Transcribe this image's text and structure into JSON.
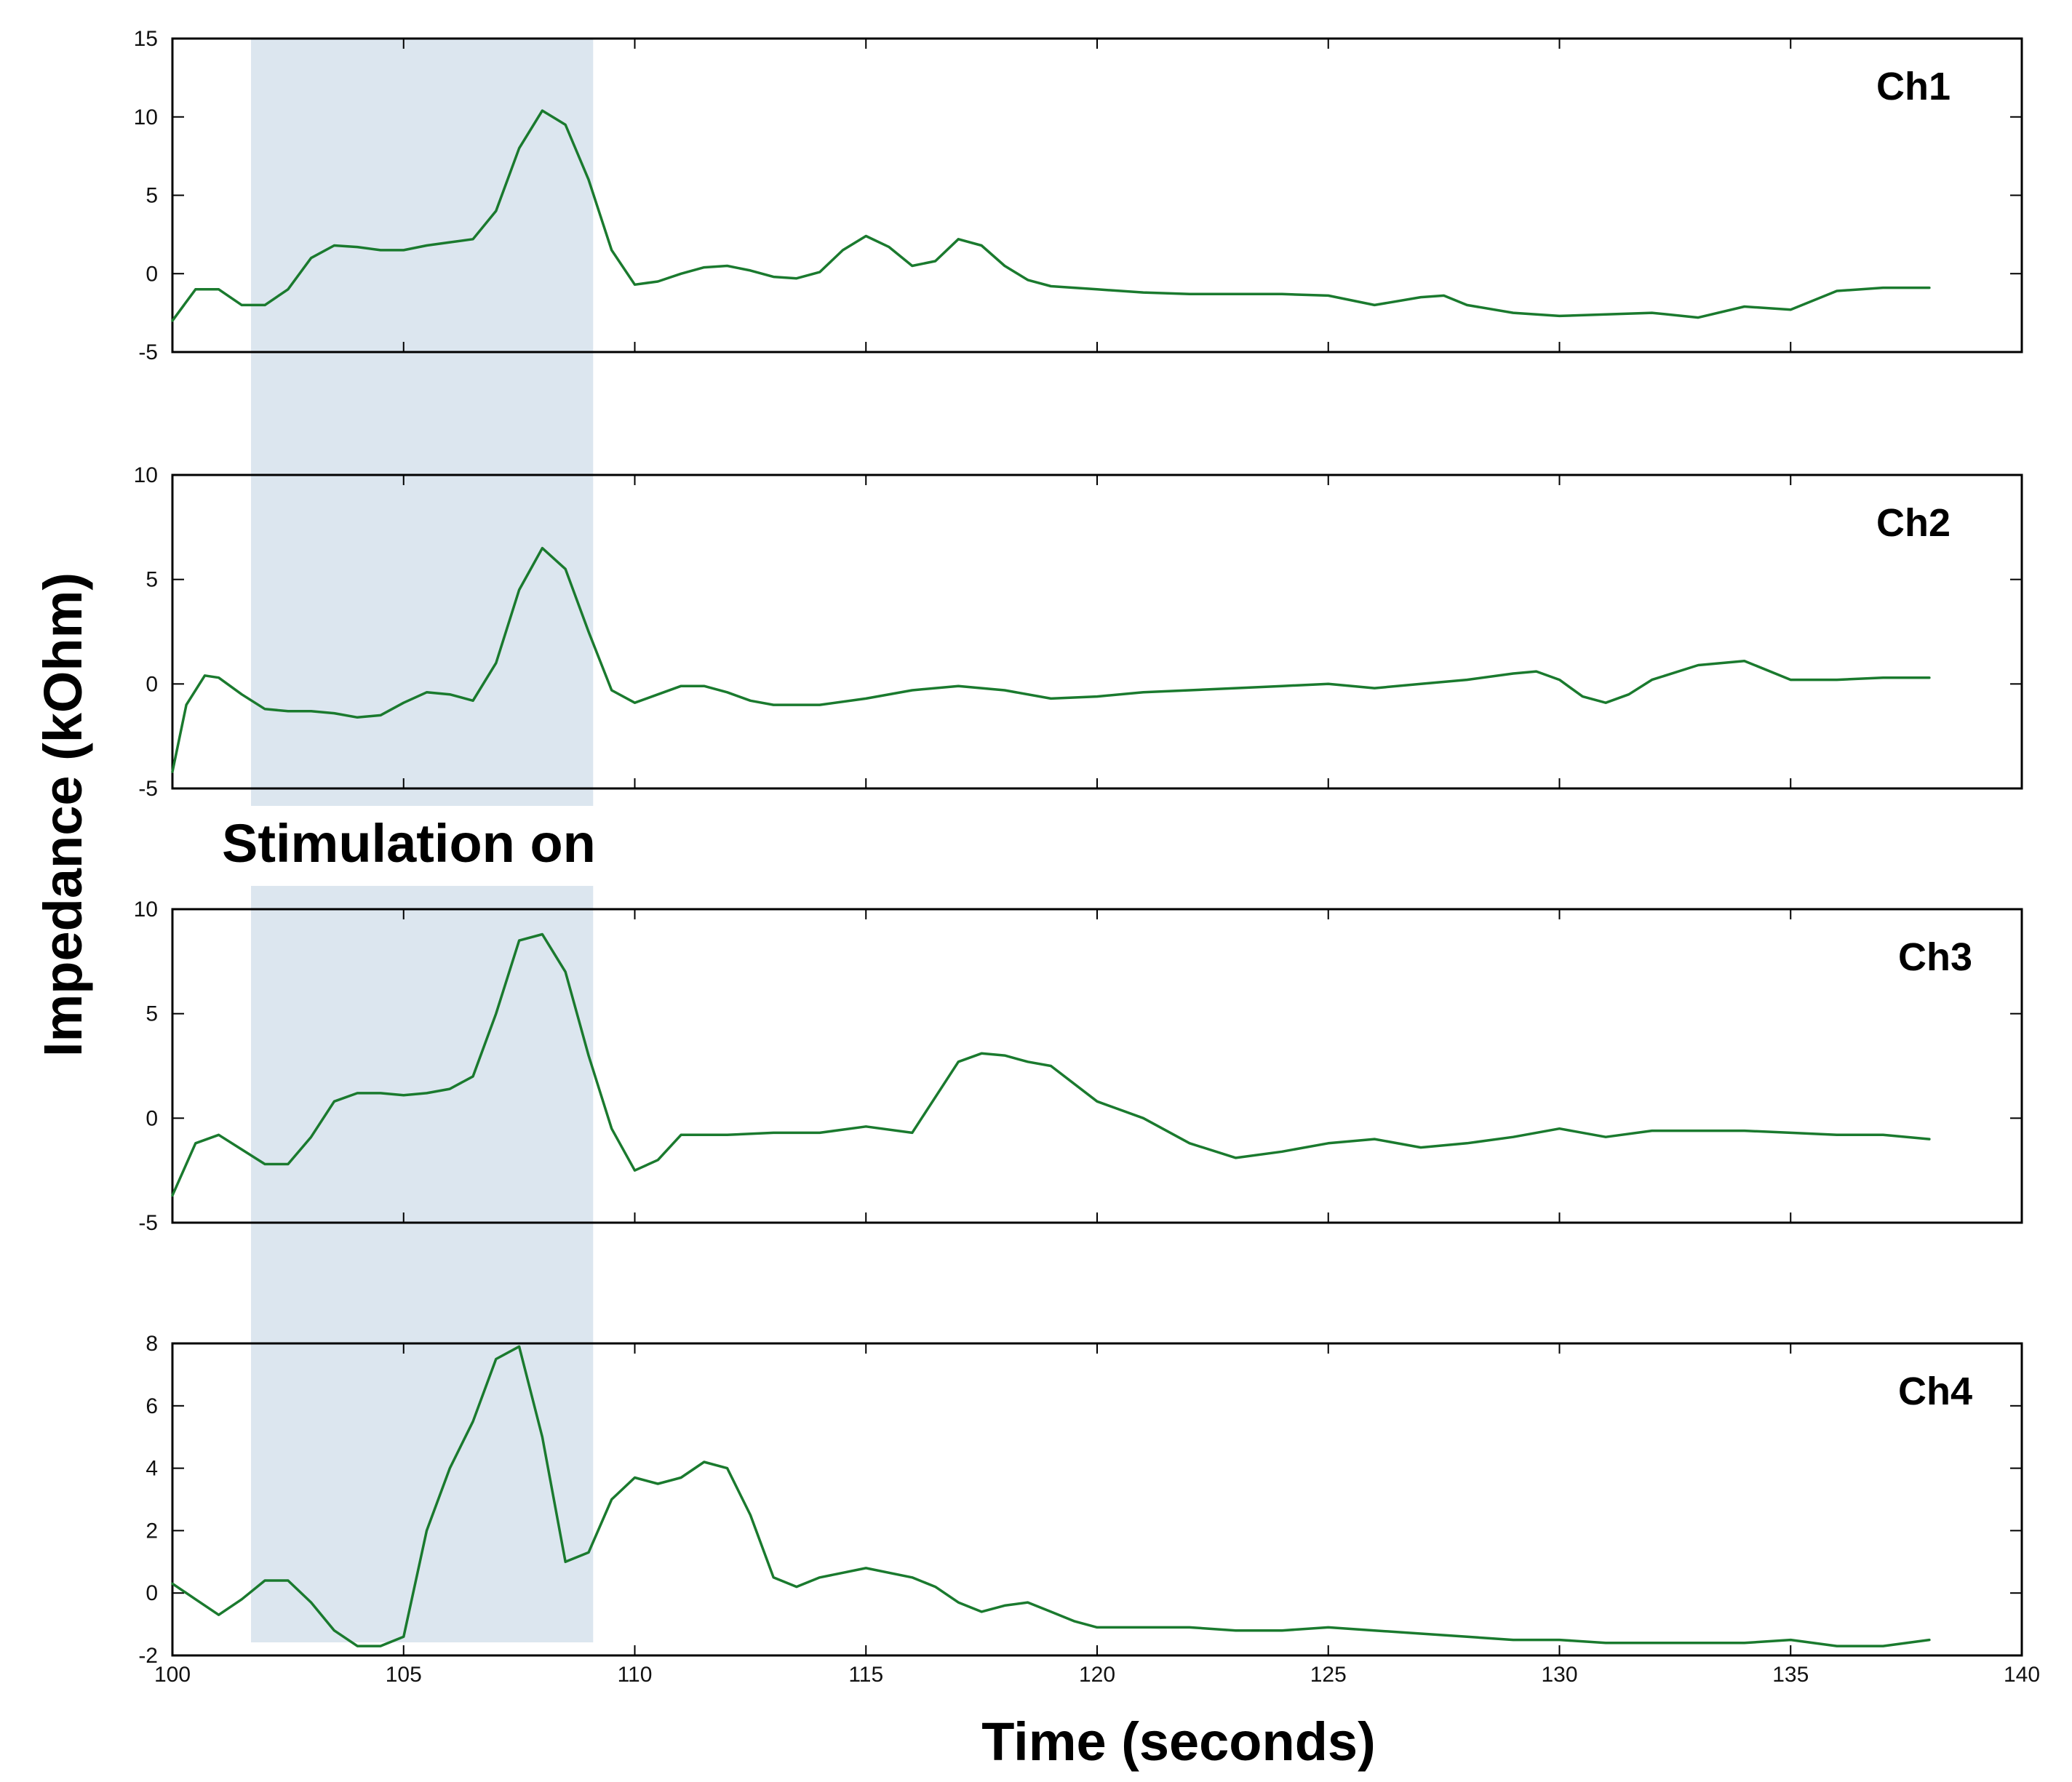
{
  "chart_data": {
    "type": "line",
    "ylabel": "Impedance (kOhm)",
    "xlabel": "Time (seconds)",
    "annotation": "Stimulation on",
    "stimulation_window": [
      101.7,
      109.1
    ],
    "xlim": [
      100,
      140
    ],
    "x_ticks": [
      "100",
      "105",
      "110",
      "115",
      "120",
      "125",
      "130",
      "135",
      "140"
    ],
    "line_color": "#1a7a2e",
    "shade_color": "#dce6ef",
    "panels": [
      {
        "label": "Ch1",
        "ylim": [
          -5,
          15
        ],
        "y_ticks": [
          "-5",
          "0",
          "5",
          "10",
          "15"
        ],
        "series": [
          {
            "x": [
              100,
              100.5,
              101,
              101.5,
              102,
              102.5,
              103,
              103.5,
              104,
              104.5,
              105,
              105.5,
              106,
              106.5,
              107,
              107.5,
              108,
              108.5,
              109,
              109.5,
              110,
              110.5,
              111,
              111.5,
              112,
              112.5,
              113,
              113.5,
              114,
              114.5,
              115,
              115.5,
              116,
              116.5,
              117,
              117.5,
              118,
              118.5,
              119,
              119.5,
              120,
              121,
              122,
              123,
              124,
              125,
              126,
              127,
              127.5,
              128,
              129,
              130,
              131,
              132,
              133,
              134,
              135,
              136,
              137,
              138
            ],
            "y": [
              -3,
              -1,
              -1,
              -2,
              -2,
              -1,
              1,
              1.8,
              1.7,
              1.5,
              1.5,
              1.8,
              2,
              2.2,
              4,
              8,
              10.4,
              9.5,
              6,
              1.5,
              -0.7,
              -0.5,
              0,
              0.4,
              0.5,
              0.2,
              -0.2,
              -0.3,
              0.1,
              1.5,
              2.4,
              1.7,
              0.5,
              0.8,
              2.2,
              1.8,
              0.5,
              -0.4,
              -0.8,
              -0.9,
              -1,
              -1.2,
              -1.3,
              -1.3,
              -1.3,
              -1.4,
              -2,
              -1.5,
              -1.4,
              -2,
              -2.5,
              -2.7,
              -2.6,
              -2.5,
              -2.8,
              -2.1,
              -2.3,
              -1.1,
              -0.9,
              -0.9
            ]
          }
        ]
      },
      {
        "label": "Ch2",
        "ylim": [
          -5,
          10
        ],
        "y_ticks": [
          "-5",
          "0",
          "5",
          "10"
        ],
        "series": [
          {
            "x": [
              100,
              100.3,
              100.7,
              101,
              101.5,
              102,
              102.5,
              103,
              103.5,
              104,
              104.5,
              105,
              105.5,
              106,
              106.5,
              107,
              107.5,
              108,
              108.5,
              109,
              109.5,
              110,
              110.5,
              111,
              111.5,
              112,
              112.5,
              113,
              114,
              115,
              116,
              117,
              118,
              119,
              120,
              121,
              122,
              123,
              124,
              125,
              126,
              127,
              128,
              129,
              129.5,
              130,
              130.5,
              131,
              131.5,
              132,
              133,
              134,
              135,
              136,
              137,
              138
            ],
            "y": [
              -4.2,
              -1,
              0.4,
              0.3,
              -0.5,
              -1.2,
              -1.3,
              -1.3,
              -1.4,
              -1.6,
              -1.5,
              -0.9,
              -0.4,
              -0.5,
              -0.8,
              1,
              4.5,
              6.5,
              5.5,
              2.5,
              -0.3,
              -0.9,
              -0.5,
              -0.1,
              -0.1,
              -0.4,
              -0.8,
              -1,
              -1,
              -0.7,
              -0.3,
              -0.1,
              -0.3,
              -0.7,
              -0.6,
              -0.4,
              -0.3,
              -0.2,
              -0.1,
              0,
              -0.2,
              0,
              0.2,
              0.5,
              0.6,
              0.2,
              -0.6,
              -0.9,
              -0.5,
              0.2,
              0.9,
              1.1,
              0.2,
              0.2,
              0.3,
              0.3
            ]
          }
        ]
      },
      {
        "label": "Ch3",
        "ylim": [
          -5,
          10
        ],
        "y_ticks": [
          "-5",
          "0",
          "5",
          "10"
        ],
        "series": [
          {
            "x": [
              100,
              100.5,
              101,
              101.5,
              102,
              102.5,
              103,
              103.5,
              104,
              104.5,
              105,
              105.5,
              106,
              106.5,
              107,
              107.5,
              108,
              108.5,
              109,
              109.5,
              110,
              110.5,
              111,
              112,
              113,
              114,
              115,
              116,
              117,
              117.5,
              118,
              118.5,
              119,
              120,
              121,
              122,
              123,
              124,
              125,
              126,
              127,
              128,
              129,
              130,
              131,
              132,
              133,
              134,
              135,
              136,
              137,
              138
            ],
            "y": [
              -3.7,
              -1.2,
              -0.8,
              -1.5,
              -2.2,
              -2.2,
              -0.9,
              0.8,
              1.2,
              1.2,
              1.1,
              1.2,
              1.4,
              2,
              5,
              8.5,
              8.8,
              7,
              3,
              -0.5,
              -2.5,
              -2,
              -0.8,
              -0.8,
              -0.7,
              -0.7,
              -0.4,
              -0.7,
              2.7,
              3.1,
              3,
              2.7,
              2.5,
              0.8,
              0,
              -1.2,
              -1.9,
              -1.6,
              -1.2,
              -1,
              -1.4,
              -1.2,
              -0.9,
              -0.5,
              -0.9,
              -0.6,
              -0.6,
              -0.6,
              -0.7,
              -0.8,
              -0.8,
              -1
            ]
          }
        ]
      },
      {
        "label": "Ch4",
        "ylim": [
          -2,
          8
        ],
        "y_ticks": [
          "-2",
          "0",
          "2",
          "4",
          "6",
          "8"
        ],
        "series": [
          {
            "x": [
              100,
              100.5,
              101,
              101.5,
              102,
              102.5,
              103,
              103.5,
              104,
              104.5,
              105,
              105.5,
              106,
              106.5,
              107,
              107.5,
              108,
              108.5,
              109,
              109.5,
              110,
              110.5,
              111,
              111.5,
              112,
              112.5,
              113,
              113.5,
              114,
              115,
              116,
              116.5,
              117,
              117.5,
              118,
              118.5,
              119,
              119.5,
              120,
              121,
              122,
              123,
              124,
              125,
              126,
              127,
              128,
              129,
              130,
              131,
              132,
              133,
              134,
              135,
              136,
              137,
              138
            ],
            "y": [
              0.3,
              -0.2,
              -0.7,
              -0.2,
              0.4,
              0.4,
              -0.3,
              -1.2,
              -1.7,
              -1.7,
              -1.4,
              2,
              4,
              5.5,
              7.5,
              7.9,
              5,
              1,
              1.3,
              3,
              3.7,
              3.5,
              3.7,
              4.2,
              4,
              2.5,
              0.5,
              0.2,
              0.5,
              0.8,
              0.5,
              0.2,
              -0.3,
              -0.6,
              -0.4,
              -0.3,
              -0.6,
              -0.9,
              -1.1,
              -1.1,
              -1.1,
              -1.2,
              -1.2,
              -1.1,
              -1.2,
              -1.3,
              -1.4,
              -1.5,
              -1.5,
              -1.6,
              -1.6,
              -1.6,
              -1.6,
              -1.5,
              -1.7,
              -1.7,
              -1.5
            ]
          }
        ]
      }
    ]
  }
}
